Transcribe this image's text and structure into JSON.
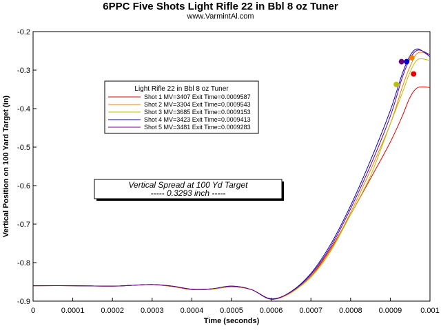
{
  "chart_data": {
    "type": "line",
    "title": "6PPC Five Shots Light Rifle 22 in Bbl  8 oz Tuner",
    "subtitle": "www.VarmintAl.com",
    "xlabel": "Time (seconds)",
    "ylabel": "Vertical Position on 100 Yard Target (in)",
    "xlim": [
      0,
      0.001
    ],
    "ylim": [
      -0.9,
      -0.2
    ],
    "x_ticks": [
      "0",
      "0.0001",
      "0.0002",
      "0.0003",
      "0.0004",
      "0.0005",
      "0.0006",
      "0.0007",
      "0.0008",
      "0.0009",
      "0.001"
    ],
    "y_ticks": [
      "-0.2",
      "-0.3",
      "-0.4",
      "-0.5",
      "-0.6",
      "-0.7",
      "-0.8",
      "-0.9"
    ],
    "grid": false,
    "legend": {
      "title": "Light Rifle 22 in Bbl  8 oz Tuner",
      "placement": "upper-left"
    },
    "annotation": {
      "line1": "Vertical Spread at 100 Yd Target",
      "line2": "----- 0.3293 inch -----"
    },
    "series": [
      {
        "name": "Shot 1 MV=3407 Exit Time=0.0009587",
        "color": "#e00000",
        "x": [
          0,
          0.0001,
          0.0002,
          0.00025,
          0.0003,
          0.00035,
          0.0004,
          0.00045,
          0.0005,
          0.00055,
          0.0006,
          0.00065,
          0.0007,
          0.00075,
          0.0008,
          0.00085,
          0.0009,
          0.00093,
          0.00095,
          0.00097,
          0.001
        ],
        "y": [
          -0.86,
          -0.86,
          -0.861,
          -0.859,
          -0.857,
          -0.862,
          -0.87,
          -0.869,
          -0.863,
          -0.87,
          -0.894,
          -0.878,
          -0.835,
          -0.763,
          -0.675,
          -0.582,
          -0.487,
          -0.42,
          -0.37,
          -0.345,
          -0.345
        ],
        "exit": {
          "x": 0.0009587,
          "y": -0.31
        }
      },
      {
        "name": "Shot 2 MV=3304 Exit Time=0.0009543",
        "color": "#f08000",
        "x": [
          0,
          0.0001,
          0.0002,
          0.00025,
          0.0003,
          0.00035,
          0.0004,
          0.00045,
          0.0005,
          0.00055,
          0.0006,
          0.00065,
          0.0007,
          0.00075,
          0.0008,
          0.00085,
          0.0009,
          0.00093,
          0.00095,
          0.00097,
          0.001
        ],
        "y": [
          -0.86,
          -0.86,
          -0.861,
          -0.859,
          -0.857,
          -0.862,
          -0.87,
          -0.869,
          -0.862,
          -0.87,
          -0.895,
          -0.878,
          -0.836,
          -0.767,
          -0.67,
          -0.56,
          -0.44,
          -0.345,
          -0.29,
          -0.255,
          -0.26
        ],
        "exit": {
          "x": 0.0009543,
          "y": -0.268
        }
      },
      {
        "name": "Shot 3 MV=3685 Exit Time=0.0009153",
        "color": "#b8c000",
        "x": [
          0,
          0.0001,
          0.0002,
          0.00025,
          0.0003,
          0.00035,
          0.0004,
          0.00045,
          0.0005,
          0.00055,
          0.0006,
          0.00065,
          0.0007,
          0.00075,
          0.0008,
          0.00085,
          0.0009,
          0.00093,
          0.00095,
          0.00097,
          0.001
        ],
        "y": [
          -0.86,
          -0.86,
          -0.861,
          -0.859,
          -0.857,
          -0.861,
          -0.869,
          -0.869,
          -0.862,
          -0.87,
          -0.894,
          -0.877,
          -0.838,
          -0.77,
          -0.675,
          -0.575,
          -0.44,
          -0.36,
          -0.305,
          -0.272,
          -0.275
        ],
        "exit": {
          "x": 0.0009153,
          "y": -0.337
        }
      },
      {
        "name": "Shot 4 MV=3423 Exit Time=0.0009413",
        "color": "#0000d0",
        "x": [
          0,
          0.0001,
          0.0002,
          0.00025,
          0.0003,
          0.00035,
          0.0004,
          0.00045,
          0.0005,
          0.00055,
          0.0006,
          0.00065,
          0.0007,
          0.00075,
          0.0008,
          0.00085,
          0.0009,
          0.00093,
          0.00095,
          0.00097,
          0.001
        ],
        "y": [
          -0.86,
          -0.86,
          -0.861,
          -0.859,
          -0.857,
          -0.861,
          -0.869,
          -0.868,
          -0.861,
          -0.87,
          -0.895,
          -0.875,
          -0.828,
          -0.752,
          -0.652,
          -0.535,
          -0.405,
          -0.31,
          -0.262,
          -0.245,
          -0.265
        ],
        "exit": {
          "x": 0.0009413,
          "y": -0.278
        }
      },
      {
        "name": "Shot 5 MV=3481 Exit Time=0.0009283",
        "color": "#6a0080",
        "x": [
          0,
          0.0001,
          0.0002,
          0.00025,
          0.0003,
          0.00035,
          0.0004,
          0.00045,
          0.0005,
          0.00055,
          0.0006,
          0.00065,
          0.0007,
          0.00075,
          0.0008,
          0.00085,
          0.0009,
          0.00093,
          0.00095,
          0.00097,
          0.001
        ],
        "y": [
          -0.86,
          -0.86,
          -0.861,
          -0.859,
          -0.857,
          -0.861,
          -0.869,
          -0.868,
          -0.861,
          -0.87,
          -0.894,
          -0.876,
          -0.831,
          -0.758,
          -0.66,
          -0.548,
          -0.42,
          -0.32,
          -0.27,
          -0.248,
          -0.26
        ],
        "exit": {
          "x": 0.0009283,
          "y": -0.278
        }
      }
    ]
  }
}
